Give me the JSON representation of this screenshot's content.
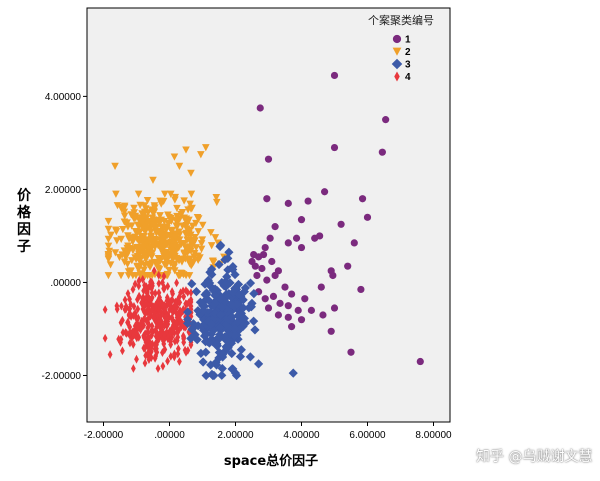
{
  "chart_data": {
    "type": "scatter",
    "title": "",
    "xlabel": "space总价因子",
    "ylabel": "价格因子",
    "xlim": [
      -2.5,
      8.5
    ],
    "ylim": [
      -3.0,
      5.9
    ],
    "xticks": [
      "-2.00000",
      ".00000",
      "2.00000",
      "4.00000",
      "6.00000",
      "8.00000"
    ],
    "xtick_values": [
      -2,
      0,
      2,
      4,
      6,
      8
    ],
    "yticks": [
      "-2.00000",
      ".00000",
      "2.00000",
      "4.00000"
    ],
    "ytick_values": [
      -2,
      0,
      2,
      4
    ],
    "grid": false,
    "legend": {
      "title": "个案聚类编号",
      "placement": "top-right",
      "items": [
        {
          "label": "1",
          "marker": "circle",
          "color": "#7b2a7e"
        },
        {
          "label": "2",
          "marker": "triangle-down",
          "color": "#f0a02a"
        },
        {
          "label": "3",
          "marker": "diamond",
          "color": "#3c5aa8"
        },
        {
          "label": "4",
          "marker": "thin-diamond",
          "color": "#e8383d"
        }
      ]
    },
    "series": [
      {
        "name": "1",
        "color": "#7b2a7e",
        "marker": "circle",
        "points": [
          [
            5.0,
            4.45
          ],
          [
            2.75,
            3.75
          ],
          [
            6.55,
            3.5
          ],
          [
            5.0,
            2.9
          ],
          [
            6.45,
            2.8
          ],
          [
            3.0,
            2.65
          ],
          [
            2.95,
            1.8
          ],
          [
            4.7,
            1.95
          ],
          [
            5.85,
            1.8
          ],
          [
            4.2,
            1.75
          ],
          [
            3.6,
            1.7
          ],
          [
            6.0,
            1.4
          ],
          [
            4.0,
            1.35
          ],
          [
            5.2,
            1.25
          ],
          [
            3.2,
            1.2
          ],
          [
            4.55,
            1.0
          ],
          [
            3.05,
            0.95
          ],
          [
            3.85,
            0.95
          ],
          [
            4.4,
            0.95
          ],
          [
            3.6,
            0.85
          ],
          [
            5.6,
            0.85
          ],
          [
            2.9,
            0.75
          ],
          [
            4.0,
            0.75
          ],
          [
            2.55,
            0.6
          ],
          [
            2.7,
            0.55
          ],
          [
            2.85,
            0.6
          ],
          [
            2.5,
            0.45
          ],
          [
            3.1,
            0.45
          ],
          [
            5.4,
            0.35
          ],
          [
            2.6,
            0.35
          ],
          [
            2.8,
            0.3
          ],
          [
            3.3,
            0.25
          ],
          [
            4.9,
            0.25
          ],
          [
            2.65,
            0.15
          ],
          [
            3.2,
            0.15
          ],
          [
            4.95,
            0.15
          ],
          [
            2.95,
            0.05
          ],
          [
            3.5,
            -0.1
          ],
          [
            4.6,
            -0.1
          ],
          [
            2.7,
            -0.2
          ],
          [
            5.8,
            -0.15
          ],
          [
            3.15,
            -0.3
          ],
          [
            3.7,
            -0.25
          ],
          [
            2.9,
            -0.35
          ],
          [
            3.35,
            -0.45
          ],
          [
            4.1,
            -0.35
          ],
          [
            3.6,
            -0.5
          ],
          [
            3.0,
            -0.55
          ],
          [
            4.3,
            -0.6
          ],
          [
            3.9,
            -0.6
          ],
          [
            5.0,
            -0.55
          ],
          [
            3.3,
            -0.7
          ],
          [
            3.6,
            -0.75
          ],
          [
            4.0,
            -0.8
          ],
          [
            4.65,
            -0.7
          ],
          [
            3.7,
            -0.95
          ],
          [
            4.9,
            -1.05
          ],
          [
            5.5,
            -1.5
          ],
          [
            7.6,
            -1.7
          ]
        ]
      },
      {
        "name": "2",
        "color": "#f0a02a",
        "marker": "triangle-down",
        "cluster": {
          "cx": -0.3,
          "cy": 0.9,
          "rx": 1.35,
          "ry": 0.85,
          "xmin": -1.85,
          "xmax": 1.65,
          "ymin": 0.15,
          "ymax": 1.9,
          "n": 420,
          "seed": 11
        },
        "points": [
          [
            -1.65,
            2.5
          ],
          [
            0.15,
            2.7
          ],
          [
            0.5,
            2.85
          ],
          [
            0.95,
            2.75
          ],
          [
            1.1,
            2.9
          ],
          [
            0.3,
            2.5
          ],
          [
            -0.5,
            2.2
          ],
          [
            0.65,
            2.35
          ]
        ]
      },
      {
        "name": "3",
        "color": "#3c5aa8",
        "marker": "diamond",
        "cluster": {
          "cx": 1.55,
          "cy": -0.75,
          "rx": 0.75,
          "ry": 0.9,
          "xmin": 0.55,
          "xmax": 2.95,
          "ymin": -2.0,
          "ymax": 0.9,
          "n": 260,
          "seed": 23
        },
        "points": [
          [
            1.55,
            0.8
          ],
          [
            1.8,
            0.65
          ],
          [
            3.75,
            -1.95
          ],
          [
            2.0,
            -1.95
          ],
          [
            1.6,
            -1.85
          ],
          [
            2.7,
            -1.75
          ],
          [
            1.1,
            -1.5
          ],
          [
            2.45,
            -1.6
          ]
        ]
      },
      {
        "name": "4",
        "color": "#e8383d",
        "marker": "thin-diamond",
        "cluster": {
          "cx": -0.35,
          "cy": -0.75,
          "rx": 0.95,
          "ry": 0.75,
          "xmin": -1.95,
          "xmax": 0.65,
          "ymin": -1.85,
          "ymax": 0.3,
          "n": 380,
          "seed": 37
        },
        "points": [
          [
            -1.95,
            -1.2
          ],
          [
            -1.8,
            -1.55
          ],
          [
            -0.2,
            -1.8
          ],
          [
            0.3,
            -1.7
          ],
          [
            -1.0,
            -1.65
          ],
          [
            0.5,
            -1.5
          ]
        ]
      }
    ]
  },
  "watermark": "知乎 @乌贼谢文慧"
}
